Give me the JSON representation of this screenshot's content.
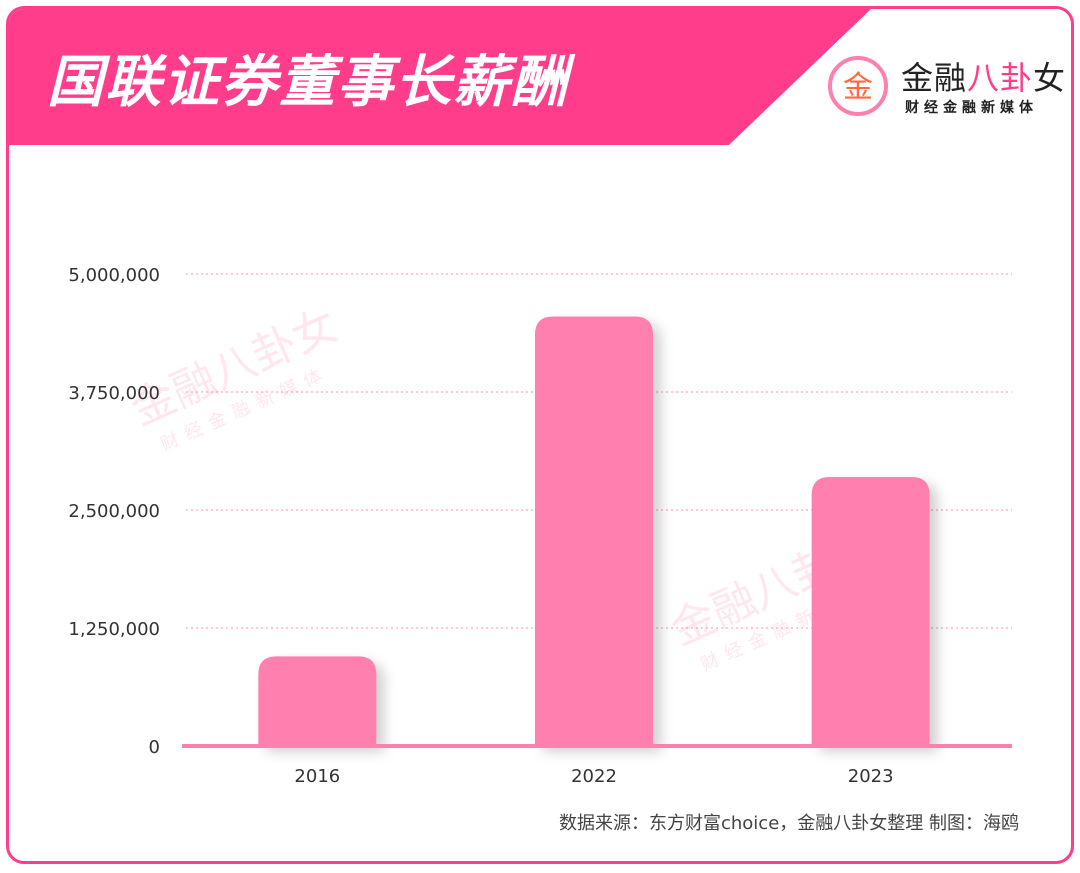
{
  "header": {
    "title": "国联证券董事长薪酬",
    "logo_name_a": "金融",
    "logo_name_b": "八卦",
    "logo_name_c": "女",
    "logo_sub": "财经金融新媒体",
    "logo_mark": "金"
  },
  "colors": {
    "frame": "#ff3d8b",
    "banner": "#ff3d8b",
    "bar": "#ff7fae",
    "grid": "#ff8fb6",
    "axis": "#ff7fae"
  },
  "chart_data": {
    "type": "bar",
    "categories": [
      "2016",
      "2022",
      "2023"
    ],
    "values": [
      950000,
      4550000,
      2850000
    ],
    "ylim": [
      0,
      5000000
    ],
    "yticks": [
      0,
      1250000,
      2500000,
      3750000,
      5000000
    ],
    "ytick_labels": [
      "0",
      "1,250,000",
      "2,500,000",
      "3,750,000",
      "5,000,000"
    ],
    "title": "",
    "xlabel": "",
    "ylabel": "",
    "grid": "horizontal dotted"
  },
  "footer": {
    "source": "数据来源：东方财富choice，金融八卦女整理     制图：海鸥"
  }
}
